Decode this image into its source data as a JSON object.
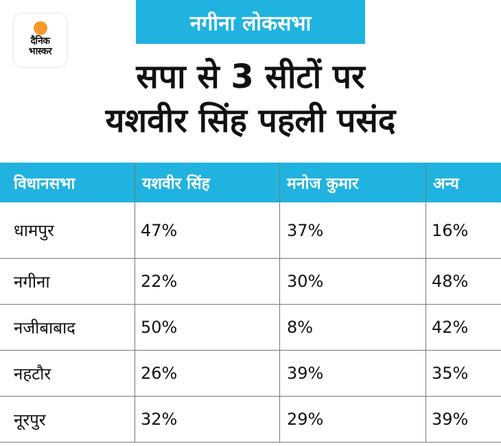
{
  "brand": {
    "logo_line1": "दैनिक",
    "logo_line2": "भास्कर",
    "sun_color": "#F39A2B"
  },
  "banner": {
    "label": "नगीना लोकसभा",
    "color": "#20B3DF"
  },
  "headline": {
    "line1": "सपा से 3 सीटों पर",
    "line2": "यशवीर सिंह पहली पसंद"
  },
  "table": {
    "headers": [
      "विधानसभा",
      "यशवीर सिंह",
      "मनोज कुमार",
      "अन्य"
    ],
    "rows": [
      [
        "धामपुर",
        "47%",
        "37%",
        "16%"
      ],
      [
        "नगीना",
        "22%",
        "30%",
        "48%"
      ],
      [
        "नजीबाबाद",
        "50%",
        "8%",
        "42%"
      ],
      [
        "नहटौर",
        "26%",
        "39%",
        "35%"
      ],
      [
        "नूरपुर",
        "32%",
        "29%",
        "39%"
      ]
    ]
  }
}
